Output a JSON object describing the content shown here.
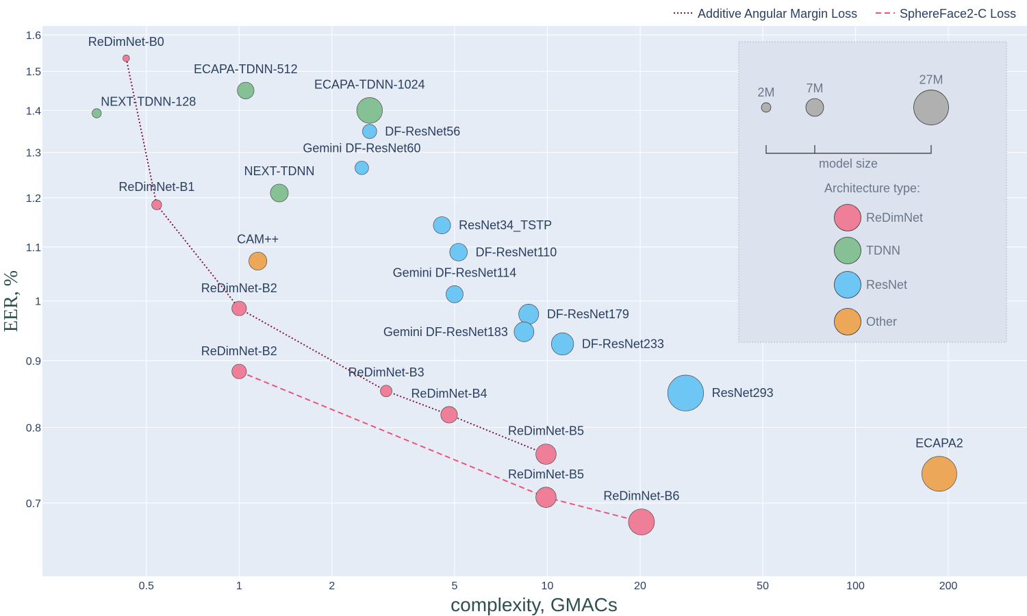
{
  "chart_data": {
    "type": "scatter",
    "title": "",
    "xlabel": "complexity, GMACs",
    "ylabel": "EER, %",
    "x_scale": "log",
    "y_scale": "log",
    "xlim": [
      0.23,
      360
    ],
    "ylim": [
      0.615,
      1.625
    ],
    "x_ticks": [
      {
        "value": 0.5,
        "label": "0.5"
      },
      {
        "value": 1,
        "label": "1"
      },
      {
        "value": 2,
        "label": "2"
      },
      {
        "value": 5,
        "label": "5"
      },
      {
        "value": 10,
        "label": "10"
      },
      {
        "value": 20,
        "label": "20"
      },
      {
        "value": 50,
        "label": "50"
      },
      {
        "value": 100,
        "label": "100"
      },
      {
        "value": 200,
        "label": "200"
      }
    ],
    "y_ticks": [
      {
        "value": 0.7,
        "label": "0.7"
      },
      {
        "value": 0.8,
        "label": "0.8"
      },
      {
        "value": 0.9,
        "label": "0.9"
      },
      {
        "value": 1.0,
        "label": "1"
      },
      {
        "value": 1.1,
        "label": "1.1"
      },
      {
        "value": 1.2,
        "label": "1.2"
      },
      {
        "value": 1.3,
        "label": "1.3"
      },
      {
        "value": 1.4,
        "label": "1.4"
      },
      {
        "value": 1.5,
        "label": "1.5"
      },
      {
        "value": 1.6,
        "label": "1.6"
      }
    ],
    "grid": true,
    "colors": {
      "ReDimNet": "#ef7f99",
      "TDNN": "#86c196",
      "ResNet": "#6ec6f5",
      "Other": "#eca858",
      "pareto_aam": "#7a1538",
      "pareto_sf2": "#e8557a",
      "plot_bg": "#e5ecf6",
      "grid": "#ffffff",
      "inset_bg": "#dde3ee"
    },
    "legend": {
      "placement": "top-right",
      "entries": [
        {
          "name": "Additive Angular Margin Loss",
          "style": "dotted",
          "color": "#7a1538"
        },
        {
          "name": "SphereFace2-C Loss",
          "style": "dashed",
          "color": "#e8557a"
        }
      ]
    },
    "size_legend": {
      "title": "model size",
      "entries": [
        {
          "label": "2M",
          "size": 2
        },
        {
          "label": "7M",
          "size": 7
        },
        {
          "label": "27M",
          "size": 27
        }
      ]
    },
    "type_legend": {
      "title": "Architecture type:",
      "entries": [
        {
          "name": "ReDimNet",
          "color": "#ef7f99"
        },
        {
          "name": "TDNN",
          "color": "#86c196"
        },
        {
          "name": "ResNet",
          "color": "#6ec6f5"
        },
        {
          "name": "Other",
          "color": "#eca858"
        }
      ]
    },
    "points": [
      {
        "label": "ReDimNet-B0",
        "x": 0.43,
        "y": 1.535,
        "size": 1.0,
        "arch": "ReDimNet",
        "label_pos": "above"
      },
      {
        "label": "NEXT-TDNN-128",
        "x": 0.345,
        "y": 1.393,
        "size": 1.9,
        "arch": "TDNN",
        "label_pos": "upper-right"
      },
      {
        "label": "ECAPA-TDNN-512",
        "x": 1.05,
        "y": 1.45,
        "size": 6.2,
        "arch": "TDNN",
        "label_pos": "above"
      },
      {
        "label": "ECAPA-TDNN-1024",
        "x": 2.65,
        "y": 1.4,
        "size": 14.7,
        "arch": "TDNN",
        "label_pos": "above"
      },
      {
        "label": "DF-ResNet56",
        "x": 2.65,
        "y": 1.349,
        "size": 4.5,
        "arch": "ResNet",
        "label_pos": "right"
      },
      {
        "label": "Gemini DF-ResNet60",
        "x": 2.5,
        "y": 1.265,
        "size": 4.1,
        "arch": "ResNet",
        "label_pos": "above"
      },
      {
        "label": "NEXT-TDNN",
        "x": 1.35,
        "y": 1.21,
        "size": 7.1,
        "arch": "TDNN",
        "label_pos": "above"
      },
      {
        "label": "ReDimNet-B1",
        "x": 0.54,
        "y": 1.185,
        "size": 2.2,
        "arch": "ReDimNet",
        "label_pos": "above"
      },
      {
        "label": "CAM++",
        "x": 1.15,
        "y": 1.073,
        "size": 7.2,
        "arch": "Other",
        "label_pos": "above"
      },
      {
        "label": "ResNet34_TSTP",
        "x": 4.55,
        "y": 1.143,
        "size": 6.6,
        "arch": "ResNet",
        "label_pos": "right"
      },
      {
        "label": "DF-ResNet110",
        "x": 5.15,
        "y": 1.09,
        "size": 6.9,
        "arch": "ResNet",
        "label_pos": "right"
      },
      {
        "label": "Gemini DF-ResNet114",
        "x": 5.0,
        "y": 1.012,
        "size": 6.5,
        "arch": "ResNet",
        "label_pos": "above"
      },
      {
        "label": "ReDimNet-B2",
        "x": 1.0,
        "y": 0.987,
        "size": 4.7,
        "arch": "ReDimNet",
        "label_pos": "above"
      },
      {
        "label": "ReDimNet-B2",
        "x": 1.0,
        "y": 0.883,
        "size": 4.7,
        "arch": "ReDimNet",
        "label_pos": "above"
      },
      {
        "label": "DF-ResNet179",
        "x": 8.7,
        "y": 0.977,
        "size": 8.9,
        "arch": "ResNet",
        "label_pos": "right"
      },
      {
        "label": "Gemini DF-ResNet183",
        "x": 8.4,
        "y": 0.947,
        "size": 8.7,
        "arch": "ResNet",
        "label_pos": "left"
      },
      {
        "label": "DF-ResNet233",
        "x": 11.2,
        "y": 0.927,
        "size": 11.0,
        "arch": "ResNet",
        "label_pos": "right"
      },
      {
        "label": "ReDimNet-B3",
        "x": 3.0,
        "y": 0.853,
        "size": 3.0,
        "arch": "ReDimNet",
        "label_pos": "above"
      },
      {
        "label": "ReDimNet-B4",
        "x": 4.8,
        "y": 0.818,
        "size": 6.1,
        "arch": "ReDimNet",
        "label_pos": "above"
      },
      {
        "label": "ReDimNet-B5",
        "x": 9.9,
        "y": 0.763,
        "size": 9.2,
        "arch": "ReDimNet",
        "label_pos": "above"
      },
      {
        "label": "ReDimNet-B5",
        "x": 9.9,
        "y": 0.707,
        "size": 9.2,
        "arch": "ReDimNet",
        "label_pos": "above"
      },
      {
        "label": "ReDimNet-B6",
        "x": 20.2,
        "y": 0.677,
        "size": 15.0,
        "arch": "ReDimNet",
        "label_pos": "above"
      },
      {
        "label": "ResNet293",
        "x": 28.1,
        "y": 0.85,
        "size": 28.6,
        "arch": "ResNet",
        "label_pos": "right"
      },
      {
        "label": "ECAPA2",
        "x": 187,
        "y": 0.737,
        "size": 27.1,
        "arch": "Other",
        "label_pos": "above"
      }
    ],
    "pareto_lines": [
      {
        "name": "Additive Angular Margin Loss",
        "x": [
          0.43,
          0.54,
          1.0,
          3.0,
          4.8,
          9.9
        ],
        "y": [
          1.535,
          1.185,
          0.987,
          0.853,
          0.818,
          0.763
        ]
      },
      {
        "name": "SphereFace2-C Loss",
        "x": [
          1.0,
          9.9,
          20.2
        ],
        "y": [
          0.883,
          0.707,
          0.677
        ]
      }
    ]
  }
}
